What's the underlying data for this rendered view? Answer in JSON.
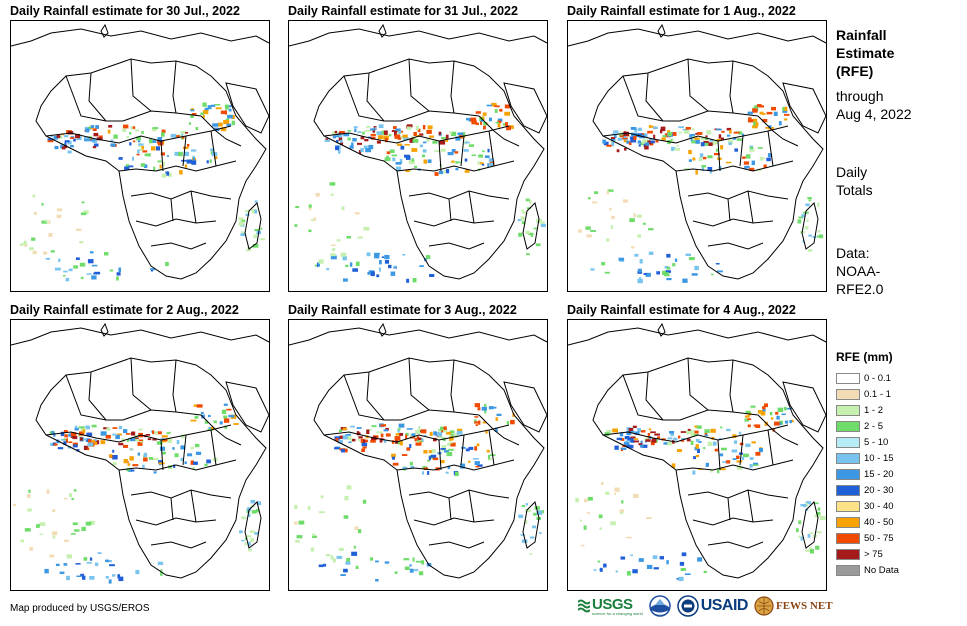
{
  "panels": [
    {
      "title": "Daily Rainfall estimate for 30 Jul., 2022"
    },
    {
      "title": "Daily Rainfall estimate for 31 Jul., 2022"
    },
    {
      "title": "Daily Rainfall estimate for 1 Aug., 2022"
    },
    {
      "title": "Daily Rainfall estimate for 2 Aug., 2022"
    },
    {
      "title": "Daily Rainfall estimate for 3 Aug., 2022"
    },
    {
      "title": "Daily Rainfall estimate for 4 Aug., 2022"
    }
  ],
  "sidebar": {
    "title_line1": "Rainfall",
    "title_line2": "Estimate",
    "title_line3": "(RFE)",
    "through_line1": "through",
    "through_line2": "Aug 4, 2022",
    "totals_line1": "Daily",
    "totals_line2": "Totals",
    "data_line1": "Data:",
    "data_line2": "NOAA-",
    "data_line3": "RFE2.0"
  },
  "legend": {
    "title": "RFE (mm)",
    "items": [
      {
        "label": "0 - 0.1",
        "color": "#ffffff"
      },
      {
        "label": "0.1 - 1",
        "color": "#f2dcb6"
      },
      {
        "label": "1 - 2",
        "color": "#c6f0b0"
      },
      {
        "label": "2 - 5",
        "color": "#6fdc6a"
      },
      {
        "label": "5 - 10",
        "color": "#b5ecf5"
      },
      {
        "label": "10 - 15",
        "color": "#79c4ef"
      },
      {
        "label": "15 - 20",
        "color": "#3d98e4"
      },
      {
        "label": "20 - 30",
        "color": "#1f5fd8"
      },
      {
        "label": "30 - 40",
        "color": "#fde387"
      },
      {
        "label": "40 - 50",
        "color": "#f6a200"
      },
      {
        "label": "50 - 75",
        "color": "#f04a00"
      },
      {
        "label": "> 75",
        "color": "#a51a1a"
      },
      {
        "label": "No Data",
        "color": "#9a9a9a"
      }
    ]
  },
  "footer": {
    "credit": "Map produced by USGS/EROS",
    "usgs": "USGS",
    "usgs_tagline": "science for a changing world",
    "noaa": "NOAA",
    "usaid": "USAID",
    "fewsnet": "FEWS NET"
  },
  "colors": {
    "border": "#000000",
    "usgs_green": "#1a7f3c",
    "noaa_blue": "#1f4fa0",
    "usaid_blue": "#0b3c7d",
    "usaid_red": "#c8102e",
    "fews_brown": "#8b4513"
  }
}
